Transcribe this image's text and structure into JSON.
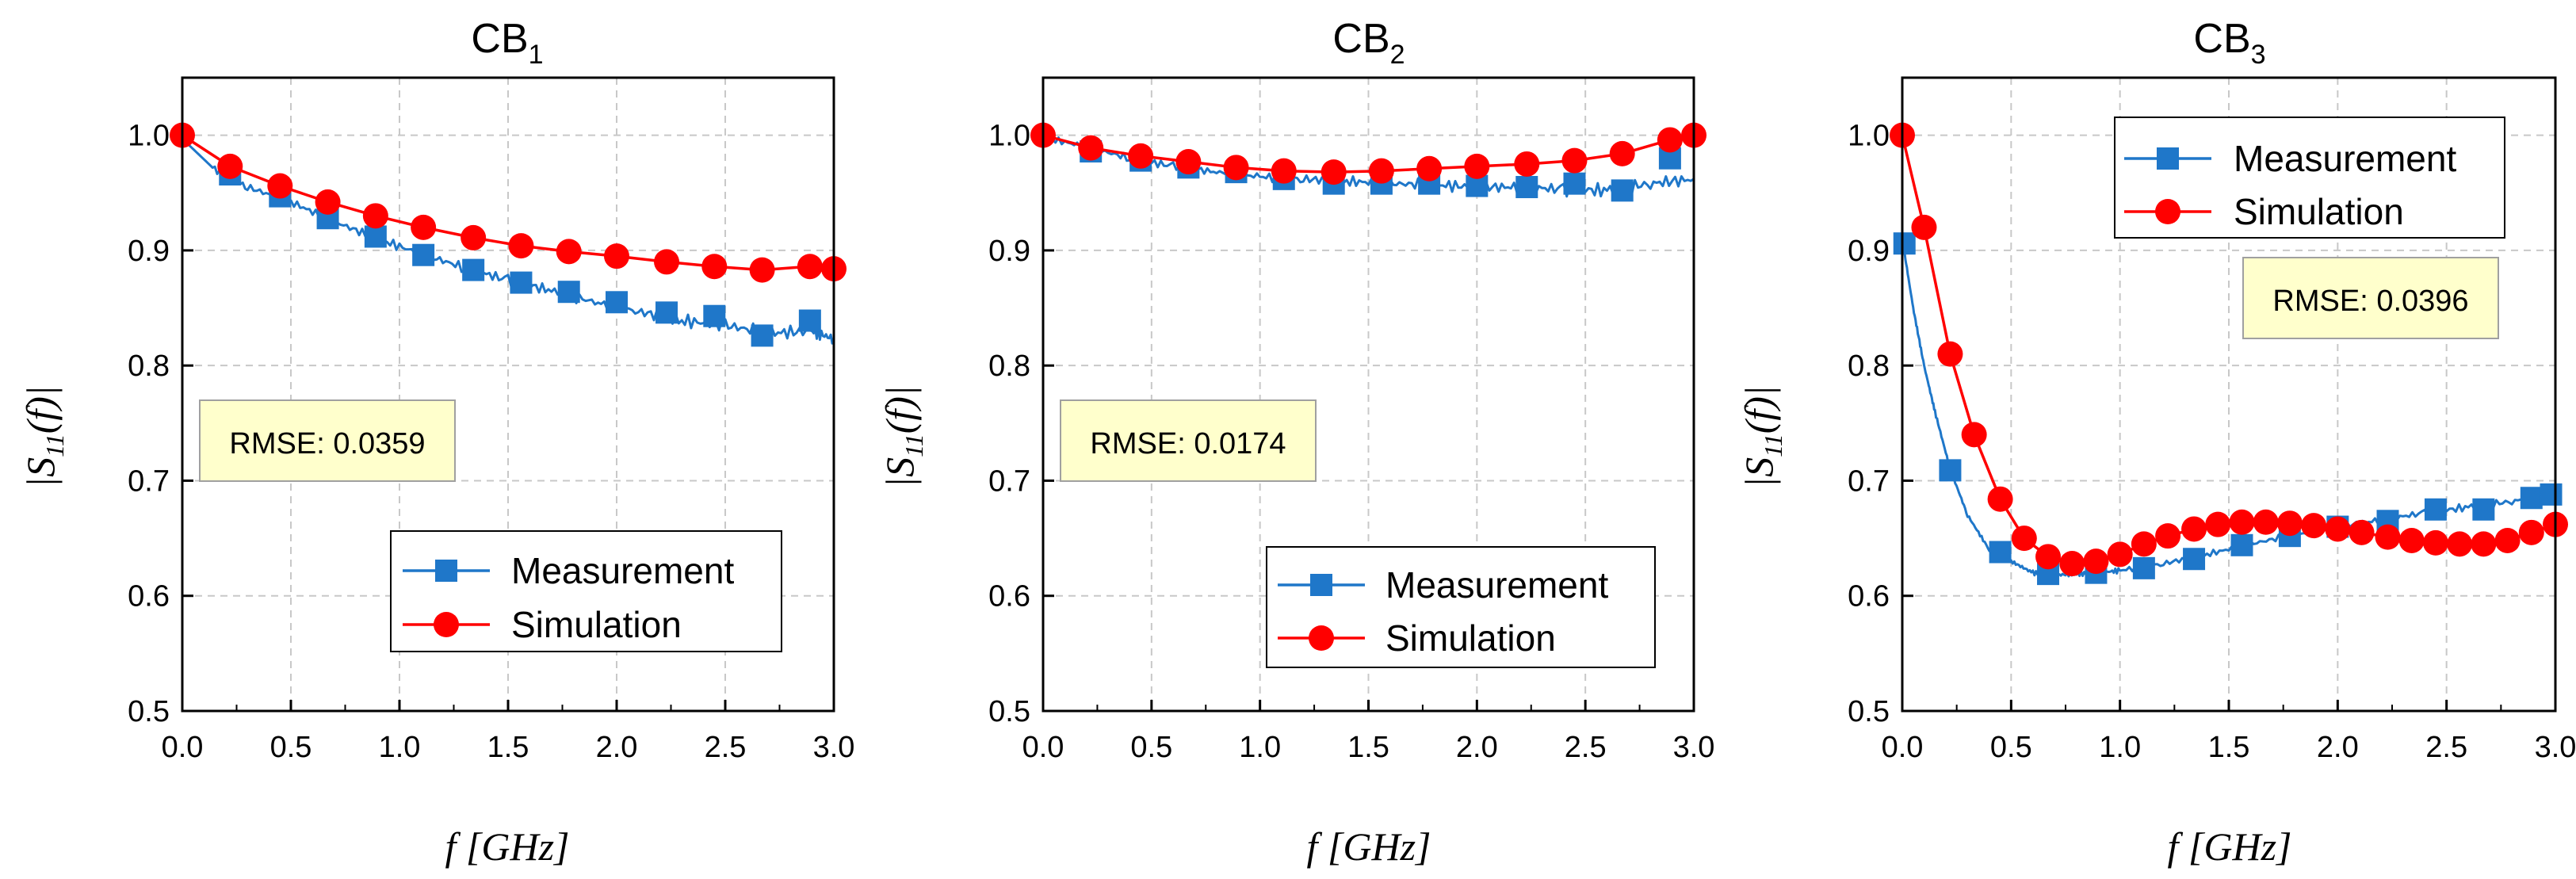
{
  "colors": {
    "measurement": "#1f77c9",
    "simulation": "#ff0000",
    "rmse_box": "#ffffcc"
  },
  "chart_data": [
    {
      "type": "line",
      "title": "CB",
      "title_sub": "1",
      "xlabel": "f [GHz]",
      "ylabel": "|S11(f)|",
      "ylabel_base": "|S",
      "ylabel_sub": "11",
      "ylabel_tail": "(f)|",
      "xlim": [
        0,
        3
      ],
      "ylim": [
        0.5,
        1.05
      ],
      "xticks": [
        "0.0",
        "0.5",
        "1.0",
        "1.5",
        "2.0",
        "2.5",
        "3.0"
      ],
      "yticks": [
        "0.5",
        "0.6",
        "0.7",
        "0.8",
        "0.9",
        "1.0"
      ],
      "rmse": "RMSE: 0.0359",
      "legend_position": "bottom-right",
      "series": [
        {
          "name": "Measurement",
          "marker": "square",
          "noise": 0.007,
          "x": [
            0,
            0.15,
            0.3,
            0.5,
            0.7,
            0.9,
            1.1,
            1.3,
            1.5,
            1.7,
            1.9,
            2.1,
            2.3,
            2.5,
            2.7,
            2.9,
            3.0
          ],
          "y": [
            0.997,
            0.97,
            0.955,
            0.942,
            0.925,
            0.91,
            0.897,
            0.885,
            0.874,
            0.865,
            0.855,
            0.847,
            0.839,
            0.835,
            0.828,
            0.83,
            0.823
          ],
          "marker_x": [
            0.22,
            0.45,
            0.67,
            0.89,
            1.11,
            1.34,
            1.56,
            1.78,
            2.0,
            2.23,
            2.45,
            2.67,
            2.89
          ],
          "marker_y": [
            0.966,
            0.947,
            0.928,
            0.912,
            0.896,
            0.883,
            0.872,
            0.864,
            0.855,
            0.846,
            0.843,
            0.826,
            0.839
          ]
        },
        {
          "name": "Simulation",
          "marker": "circle",
          "x": [
            0,
            0.22,
            0.45,
            0.67,
            0.89,
            1.11,
            1.34,
            1.56,
            1.78,
            2.0,
            2.23,
            2.45,
            2.67,
            2.89,
            3.0
          ],
          "y": [
            1.0,
            0.973,
            0.956,
            0.942,
            0.93,
            0.92,
            0.911,
            0.904,
            0.899,
            0.895,
            0.89,
            0.886,
            0.883,
            0.886,
            0.884
          ]
        }
      ]
    },
    {
      "type": "line",
      "title": "CB",
      "title_sub": "2",
      "xlabel": "f [GHz]",
      "ylabel": "|S11(f)|",
      "ylabel_base": "|S",
      "ylabel_sub": "11",
      "ylabel_tail": "(f)|",
      "xlim": [
        0,
        3
      ],
      "ylim": [
        0.5,
        1.05
      ],
      "xticks": [
        "0.0",
        "0.5",
        "1.0",
        "1.5",
        "2.0",
        "2.5",
        "3.0"
      ],
      "yticks": [
        "0.5",
        "0.6",
        "0.7",
        "0.8",
        "0.9",
        "1.0"
      ],
      "rmse": "RMSE: 0.0174",
      "legend_position": "bottom-right",
      "series": [
        {
          "name": "Measurement",
          "marker": "square",
          "noise": 0.007,
          "x": [
            0,
            0.2,
            0.4,
            0.6,
            0.8,
            1.0,
            1.2,
            1.4,
            1.6,
            1.8,
            2.0,
            2.2,
            2.4,
            2.6,
            2.8,
            3.0
          ],
          "y": [
            0.998,
            0.99,
            0.98,
            0.973,
            0.968,
            0.964,
            0.962,
            0.96,
            0.958,
            0.957,
            0.955,
            0.955,
            0.953,
            0.952,
            0.958,
            0.962
          ],
          "marker_x": [
            0.22,
            0.45,
            0.67,
            0.89,
            1.11,
            1.34,
            1.56,
            1.78,
            2.0,
            2.23,
            2.45,
            2.67,
            2.89
          ],
          "marker_y": [
            0.986,
            0.978,
            0.972,
            0.968,
            0.962,
            0.958,
            0.958,
            0.958,
            0.956,
            0.955,
            0.958,
            0.952,
            0.98
          ]
        },
        {
          "name": "Simulation",
          "marker": "circle",
          "x": [
            0,
            0.22,
            0.45,
            0.67,
            0.89,
            1.11,
            1.34,
            1.56,
            1.78,
            2.0,
            2.23,
            2.45,
            2.67,
            2.89,
            3.0
          ],
          "y": [
            1.0,
            0.989,
            0.982,
            0.977,
            0.972,
            0.969,
            0.968,
            0.969,
            0.971,
            0.973,
            0.975,
            0.978,
            0.984,
            0.996,
            1.0
          ]
        }
      ]
    },
    {
      "type": "line",
      "title": "CB",
      "title_sub": "3",
      "xlabel": "f [GHz]",
      "ylabel": "|S11(f)|",
      "ylabel_base": "|S",
      "ylabel_sub": "11",
      "ylabel_tail": "(f)|",
      "xlim": [
        0,
        3
      ],
      "ylim": [
        0.5,
        1.05
      ],
      "xticks": [
        "0.0",
        "0.5",
        "1.0",
        "1.5",
        "2.0",
        "2.5",
        "3.0"
      ],
      "yticks": [
        "0.5",
        "0.6",
        "0.7",
        "0.8",
        "0.9",
        "1.0"
      ],
      "rmse": "RMSE: 0.0396",
      "legend_position": "top-right",
      "series": [
        {
          "name": "Measurement",
          "marker": "square",
          "noise": 0.004,
          "x": [
            0,
            0.05,
            0.1,
            0.15,
            0.22,
            0.3,
            0.4,
            0.5,
            0.6,
            0.7,
            0.8,
            0.9,
            1.0,
            1.2,
            1.4,
            1.6,
            1.8,
            2.0,
            2.2,
            2.4,
            2.6,
            2.8,
            3.0
          ],
          "y": [
            0.91,
            0.85,
            0.8,
            0.76,
            0.71,
            0.67,
            0.64,
            0.63,
            0.62,
            0.618,
            0.619,
            0.62,
            0.622,
            0.628,
            0.636,
            0.645,
            0.653,
            0.66,
            0.666,
            0.672,
            0.677,
            0.682,
            0.688
          ],
          "marker_x": [
            0.01,
            0.22,
            0.45,
            0.67,
            0.89,
            1.11,
            1.34,
            1.56,
            1.78,
            2.0,
            2.23,
            2.45,
            2.67,
            2.89,
            2.98
          ],
          "marker_y": [
            0.906,
            0.709,
            0.638,
            0.619,
            0.62,
            0.624,
            0.632,
            0.644,
            0.652,
            0.66,
            0.665,
            0.675,
            0.675,
            0.685,
            0.688
          ]
        },
        {
          "name": "Simulation",
          "marker": "circle",
          "x": [
            0,
            0.1,
            0.22,
            0.33,
            0.45,
            0.56,
            0.67,
            0.78,
            0.89,
            1.0,
            1.11,
            1.22,
            1.34,
            1.45,
            1.56,
            1.67,
            1.78,
            1.89,
            2.0,
            2.11,
            2.23,
            2.34,
            2.45,
            2.56,
            2.67,
            2.78,
            2.89,
            3.0
          ],
          "y": [
            1.0,
            0.92,
            0.81,
            0.74,
            0.684,
            0.65,
            0.634,
            0.628,
            0.63,
            0.636,
            0.645,
            0.652,
            0.658,
            0.662,
            0.664,
            0.664,
            0.663,
            0.661,
            0.658,
            0.655,
            0.651,
            0.648,
            0.646,
            0.645,
            0.645,
            0.648,
            0.655,
            0.662
          ]
        }
      ]
    }
  ]
}
